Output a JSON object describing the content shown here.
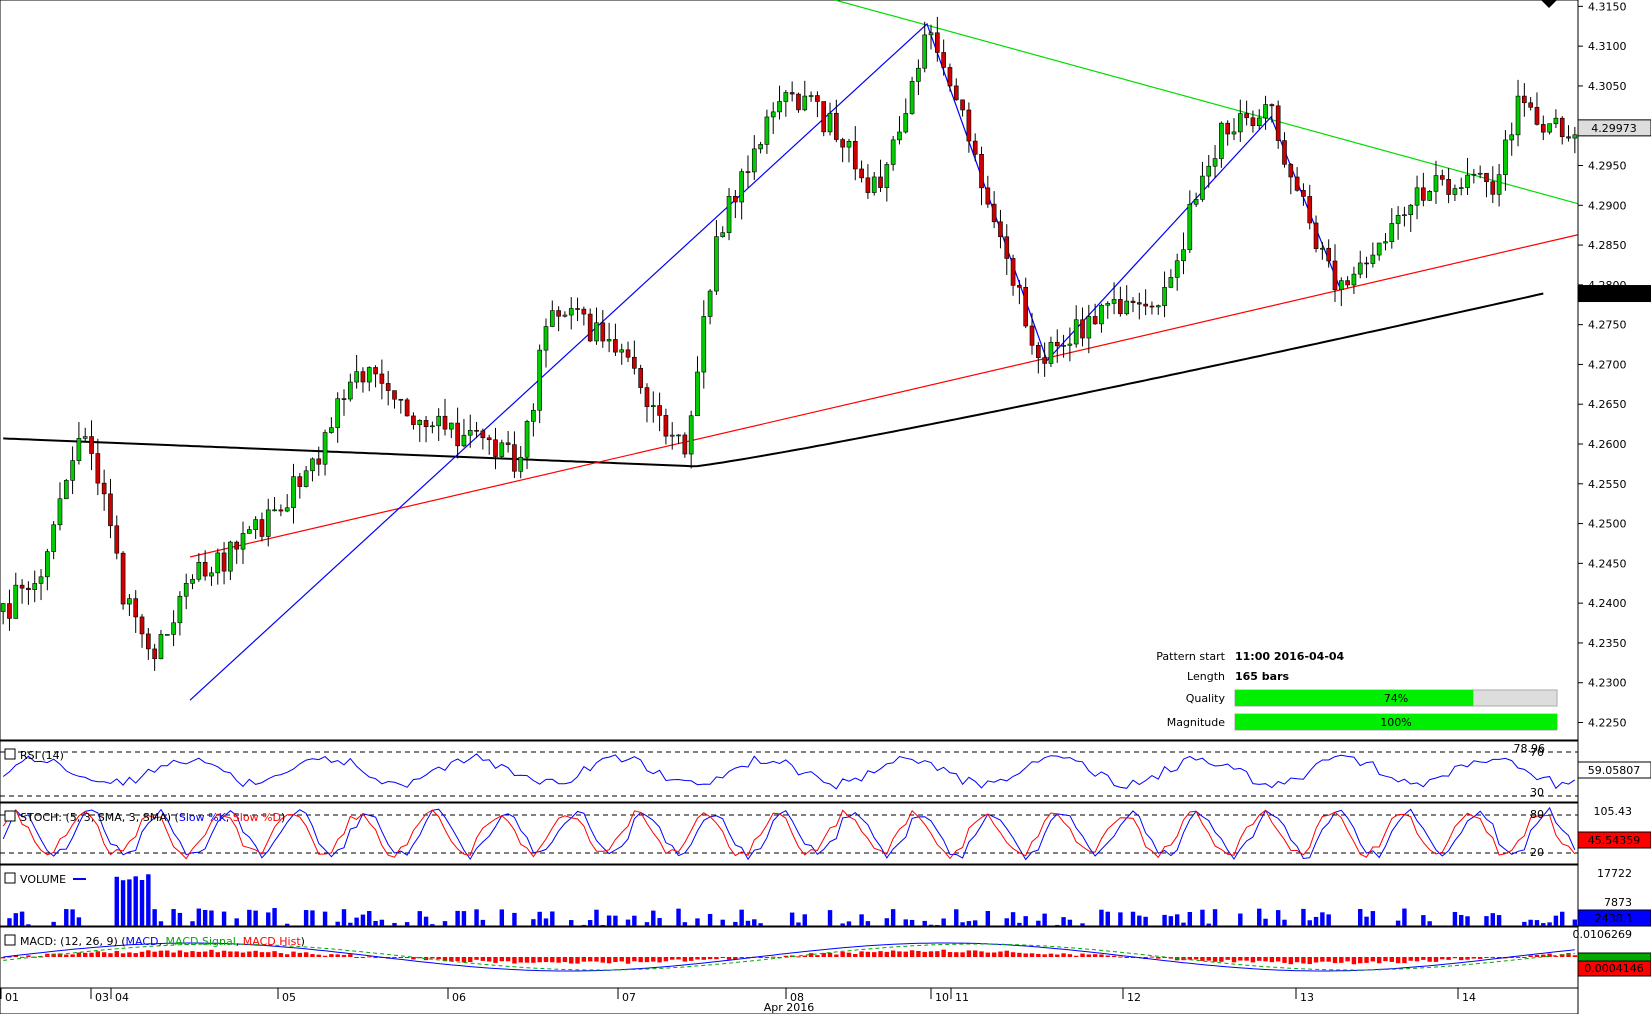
{
  "chart_data": {
    "type": "candlestick",
    "price_axis": {
      "ylim": [
        4.2228,
        4.3158
      ],
      "ticks": [
        "4.3150",
        "4.3100",
        "4.3050",
        "4.3000",
        "4.2950",
        "4.2900",
        "4.2850",
        "4.2800",
        "4.2750",
        "4.2700",
        "4.2650",
        "4.2600",
        "4.2550",
        "4.2500",
        "4.2450",
        "4.2400",
        "4.2350",
        "4.2300",
        "4.2250"
      ],
      "current_price": "4.29973",
      "ma_value": "4.27891"
    },
    "x_axis": {
      "labels": [
        "01",
        "03",
        "04",
        "05",
        "06",
        "07",
        "08",
        "10",
        "11",
        "12",
        "13",
        "14"
      ],
      "month_label": "Apr 2016"
    },
    "trendlines": [
      {
        "name": "resistance",
        "color": "#00dd00",
        "from": [
          "2016-04-07 20:00",
          4.3158
        ],
        "to": [
          "2016-04-14 22:00",
          4.2902
        ]
      },
      {
        "name": "support",
        "color": "#ff0000",
        "from": [
          "2016-04-04 06:00",
          4.2458
        ],
        "to": [
          "2016-04-14 22:00",
          4.2863
        ]
      }
    ],
    "pattern_info": {
      "start_label": "Pattern start",
      "start_value": "11:00 2016-04-04",
      "length_label": "Length",
      "length_value": "165 bars",
      "quality_label": "Quality",
      "quality_pct": 74,
      "quality_text": "74%",
      "magnitude_label": "Magnitude",
      "magnitude_pct": 100,
      "magnitude_text": "100%"
    },
    "indicators": {
      "rsi": {
        "label": "RSI (14)",
        "level_high": "70",
        "level_low": "30",
        "max_label": "78.96",
        "value": "59.05807"
      },
      "stoch": {
        "label": "STOCH: (5, 3, SMA, 3, SMA)",
        "series": [
          "Slow %K",
          "Slow %D"
        ],
        "level_high": "80",
        "level_low": "20",
        "max_label": "105.43",
        "value": "45.54359"
      },
      "volume": {
        "label": "VOLUME",
        "max_label": "17722",
        "mid_label": "7873",
        "value": "2438.1"
      },
      "macd": {
        "label": "MACD: (12, 26, 9)",
        "series": [
          "MACD",
          "MACD Signal",
          "MACD Hist"
        ],
        "max_label": "0.0106269",
        "value": "0.0004146"
      }
    },
    "colors": {
      "up": "#00cc00",
      "down": "#cc0000",
      "ma": "#000000",
      "zigzag": "#0000ff",
      "resistance": "#00dd00",
      "support": "#ff0000",
      "quality": "#00ee00"
    }
  }
}
